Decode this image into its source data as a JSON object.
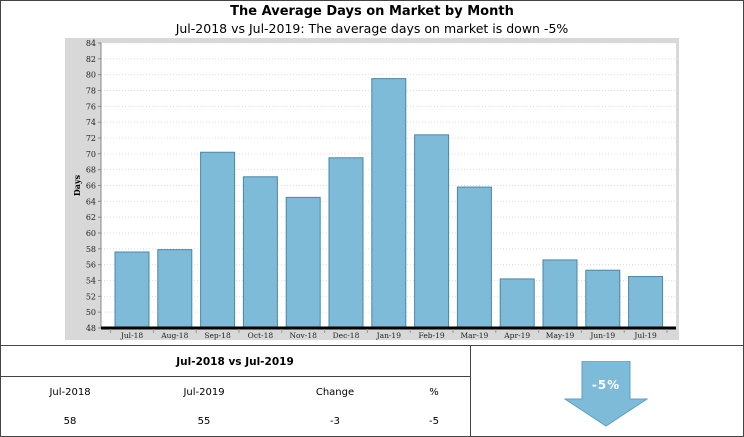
{
  "header": {
    "title": "The Average Days on Market by Month",
    "subtitle": "Jul-2018 vs Jul-2019: The average days on market is down -5%"
  },
  "chart_data": {
    "type": "bar",
    "ylabel": "Days",
    "xlabel": "",
    "ylim": [
      48,
      84
    ],
    "yticks": [
      48,
      50,
      52,
      54,
      56,
      58,
      60,
      62,
      64,
      66,
      68,
      70,
      72,
      74,
      76,
      78,
      80,
      82,
      84
    ],
    "categories": [
      "Jul-18",
      "Aug-18",
      "Sep-18",
      "Oct-18",
      "Nov-18",
      "Dec-18",
      "Jan-19",
      "Feb-19",
      "Mar-19",
      "Apr-19",
      "May-19",
      "Jun-19",
      "Jul-19"
    ],
    "values": [
      57.6,
      57.9,
      70.2,
      67.1,
      64.5,
      69.5,
      79.5,
      72.4,
      65.8,
      54.2,
      56.6,
      55.3,
      54.5
    ],
    "grid": true,
    "colors": {
      "bar": "#7dbbd9",
      "bar_border": "#4a86a8",
      "plot_bg": "#ffffff",
      "frame_bg": "#d8d8d8"
    }
  },
  "comparison": {
    "title": "Jul-2018 vs Jul-2019",
    "headers": [
      "Jul-2018",
      "Jul-2019",
      "Change",
      "%"
    ],
    "values": [
      "58",
      "55",
      "-3",
      "-5"
    ]
  },
  "indicator": {
    "label": "-5%",
    "direction": "down",
    "color": "#7dbbd9"
  }
}
